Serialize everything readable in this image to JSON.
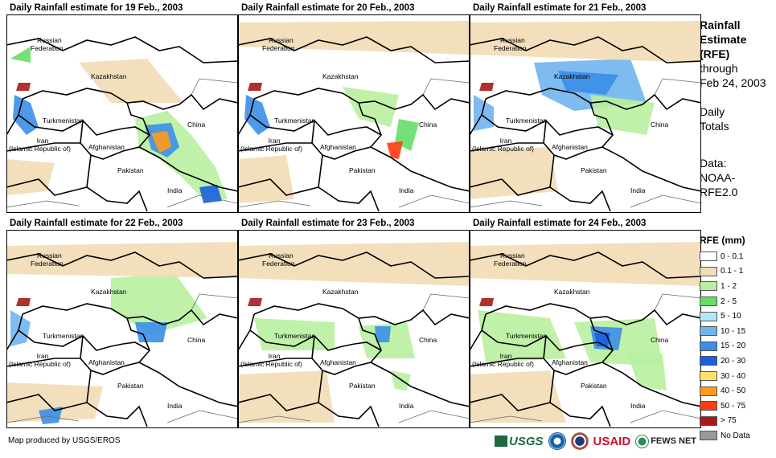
{
  "panels": [
    {
      "title": "Daily Rainfall estimate for 19 Feb., 2003"
    },
    {
      "title": "Daily Rainfall estimate for 20 Feb., 2003"
    },
    {
      "title": "Daily Rainfall estimate for 21 Feb., 2003"
    },
    {
      "title": "Daily Rainfall estimate for 22 Feb., 2003"
    },
    {
      "title": "Daily Rainfall estimate for 23 Feb., 2003"
    },
    {
      "title": "Daily Rainfall estimate for 24 Feb., 2003"
    }
  ],
  "map_labels": {
    "russia_1": "Russian",
    "russia_2": "Federation",
    "kazakhstan": "Kazakhstan",
    "turkmenistan": "Turkmenistan",
    "iran_1": "Iran",
    "iran_2": "(Islamic Republic of)",
    "afghanistan": "Afghanistan",
    "pakistan": "Pakistan",
    "china": "China",
    "india": "India"
  },
  "side": {
    "title_1": "Rainfall",
    "title_2": "Estimate",
    "title_3": "(RFE)",
    "through": "through",
    "date": "Feb 24, 2003",
    "daily": "Daily",
    "totals": "Totals",
    "data_label": "Data:",
    "data_src_1": "NOAA-",
    "data_src_2": "RFE2.0"
  },
  "legend": {
    "title": "RFE (mm)",
    "items": [
      {
        "label": "0 - 0.1",
        "color": "#ffffff"
      },
      {
        "label": "0.1 - 1",
        "color": "#f2dcb5"
      },
      {
        "label": "1 - 2",
        "color": "#b8efa0"
      },
      {
        "label": "2 - 5",
        "color": "#66dd66"
      },
      {
        "label": "5 - 10",
        "color": "#aeeaf5"
      },
      {
        "label": "10 - 15",
        "color": "#6fb4ee"
      },
      {
        "label": "15 - 20",
        "color": "#3b8ee8"
      },
      {
        "label": "20 - 30",
        "color": "#1a5fe0"
      },
      {
        "label": "30 - 40",
        "color": "#ffe066"
      },
      {
        "label": "40 - 50",
        "color": "#ff9b1a"
      },
      {
        "label": "50 - 75",
        "color": "#ff3b10"
      },
      {
        "label": "> 75",
        "color": "#a81a1a"
      },
      {
        "label": "No Data",
        "color": "#999999"
      }
    ]
  },
  "credit": "Map produced by USGS/EROS",
  "logos": {
    "usgs": "USGS",
    "usaid": "USAID",
    "fews": "FEWS NET"
  }
}
